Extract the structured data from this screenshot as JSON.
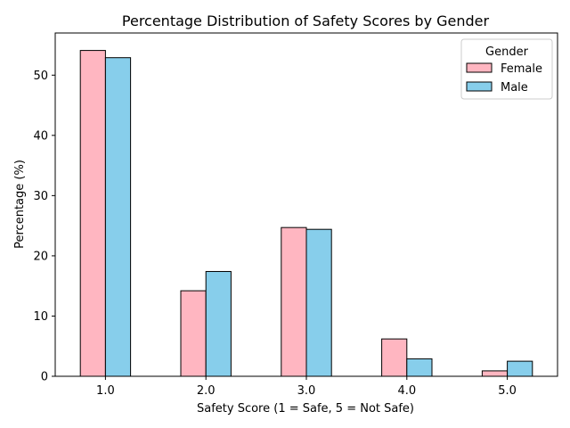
{
  "chart_data": {
    "type": "bar",
    "title": "Percentage Distribution of Safety Scores by Gender",
    "xlabel": "Safety Score (1 = Safe, 5 = Not Safe)",
    "ylabel": "Percentage (%)",
    "categories": [
      "1.0",
      "2.0",
      "3.0",
      "4.0",
      "5.0"
    ],
    "series": [
      {
        "name": "Female",
        "color": "#FFB6C1",
        "values": [
          54.1,
          14.2,
          24.7,
          6.2,
          0.9
        ]
      },
      {
        "name": "Male",
        "color": "#87CEEB",
        "values": [
          52.9,
          17.4,
          24.4,
          2.9,
          2.5
        ]
      }
    ],
    "ylim": [
      0,
      57
    ],
    "yticks": [
      0,
      10,
      20,
      30,
      40,
      50
    ],
    "grid": false,
    "legend": {
      "title": "Gender",
      "placement": "top-right"
    }
  }
}
